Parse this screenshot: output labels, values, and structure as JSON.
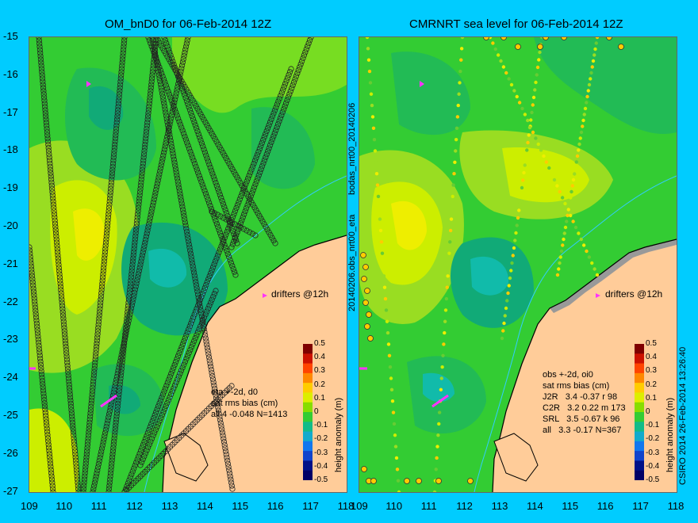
{
  "left_panel": {
    "title": "OM_bnD0 for 06-Feb-2014 12Z",
    "side_label": "bodas_nrt00_20140206",
    "drifters_label": "drifters @12h",
    "stats": [
      "eta +-2d, d0",
      "sat rms bias (cm)",
      "all 4 -0.048 N=1413"
    ]
  },
  "right_panel": {
    "title": "CMRNRT sea level  for 06-Feb-2014 12Z",
    "side_label": "20140206.obs_nrt00_eta",
    "drifters_label": "drifters @12h",
    "stats": [
      "obs +-2d, oi0",
      "sat rms bias (cm)",
      "J2R   3.4 -0.37 r 98",
      "C2R   3.2 0.22 m 173",
      "SRL   3.5 -0.67 k 96",
      "all   3.3 -0.17 N=367"
    ]
  },
  "credit": "CSIRO 2014   26-Feb-2014 13:26:40",
  "colorbar": {
    "label": "height anomaly (m)",
    "ticks": [
      "0.5",
      "0.4",
      "0.3",
      "0.2",
      "0.1",
      "0",
      "-0.1",
      "-0.2",
      "-0.3",
      "-0.4",
      "-0.5"
    ]
  },
  "y_ticks": [
    "-15",
    "-16",
    "-17",
    "-18",
    "-19",
    "-20",
    "-21",
    "-22",
    "-23",
    "-24",
    "-25",
    "-26",
    "-27"
  ],
  "x_ticks": [
    "109",
    "110",
    "111",
    "112",
    "113",
    "114",
    "115",
    "116",
    "117",
    "118"
  ],
  "colors": {
    "background": "#00ccff",
    "land": "#ffcc99",
    "sea_mid": "#33cc33",
    "drifter": "#ff33ff"
  }
}
